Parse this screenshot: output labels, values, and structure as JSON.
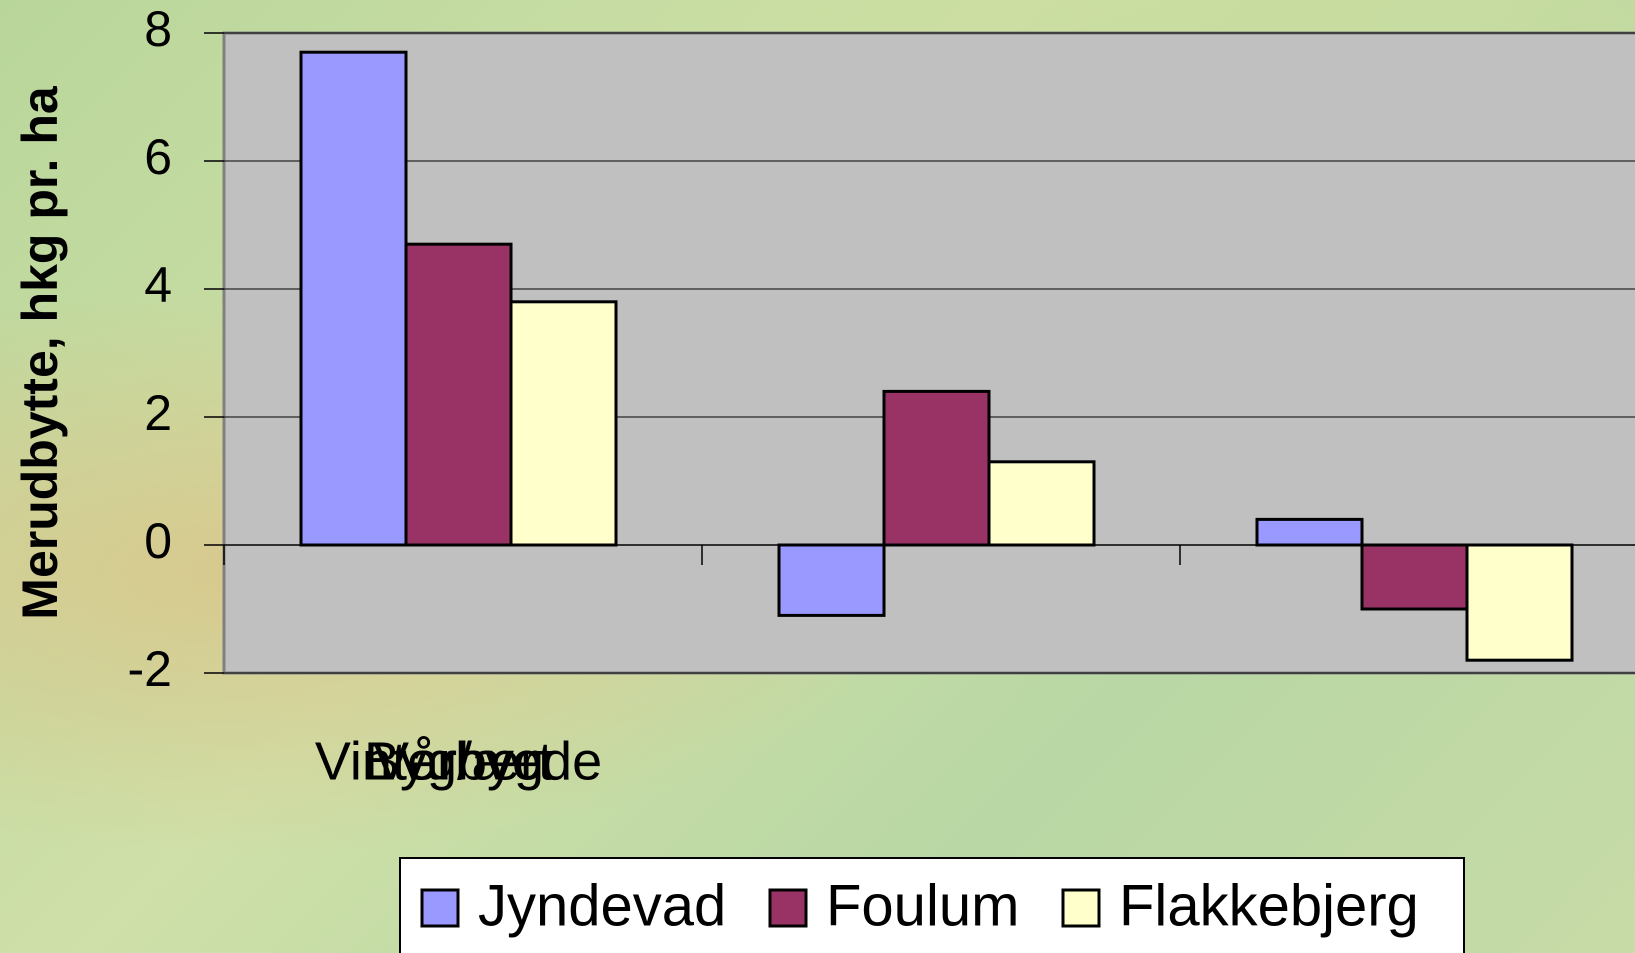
{
  "chart_data": {
    "type": "bar",
    "y_label": "Merudbytte, hkg pr. ha",
    "categories": [
      "Vårbyg",
      "Vinterhvede",
      "Byg/ært"
    ],
    "series": [
      {
        "name": "Jyndevad",
        "color": "#9999ff",
        "values": [
          7.7,
          -1.1,
          0.4
        ]
      },
      {
        "name": "Foulum",
        "color": "#993366",
        "values": [
          4.7,
          2.4,
          -1.0
        ]
      },
      {
        "name": "Flakkebjerg",
        "color": "#ffffcc",
        "values": [
          3.8,
          1.3,
          -1.8
        ]
      }
    ],
    "ylim": [
      -2,
      8
    ],
    "yticks": [
      -2,
      0,
      2,
      4,
      6,
      8
    ],
    "grid": true,
    "plot_background": "#c0c0c0",
    "legend": "bottom"
  }
}
